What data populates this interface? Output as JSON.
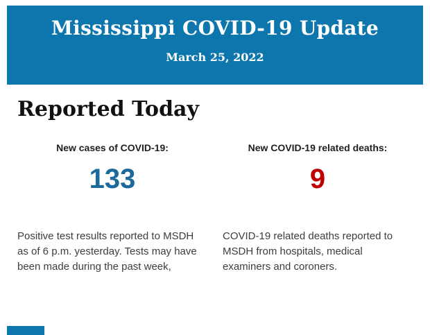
{
  "header": {
    "title": "Mississippi COVID-19 Update",
    "date": "March 25, 2022",
    "background_color": "#0d76ad",
    "text_color": "#ffffff"
  },
  "section": {
    "heading": "Reported Today"
  },
  "stats": [
    {
      "label": "New cases of COVID-19:",
      "value": "133",
      "value_color": "#1c6a9c",
      "description": "Positive test results reported to MSDH as of 6 p.m. yesterday. Tests may have been made during the past week,"
    },
    {
      "label": "New COVID-19 related deaths:",
      "value": "9",
      "value_color": "#c00000",
      "description": "COVID-19 related deaths reported to MSDH from hospitals, medical examiners and coroners."
    }
  ],
  "footer": {
    "next_section_color": "#0d76ad"
  }
}
